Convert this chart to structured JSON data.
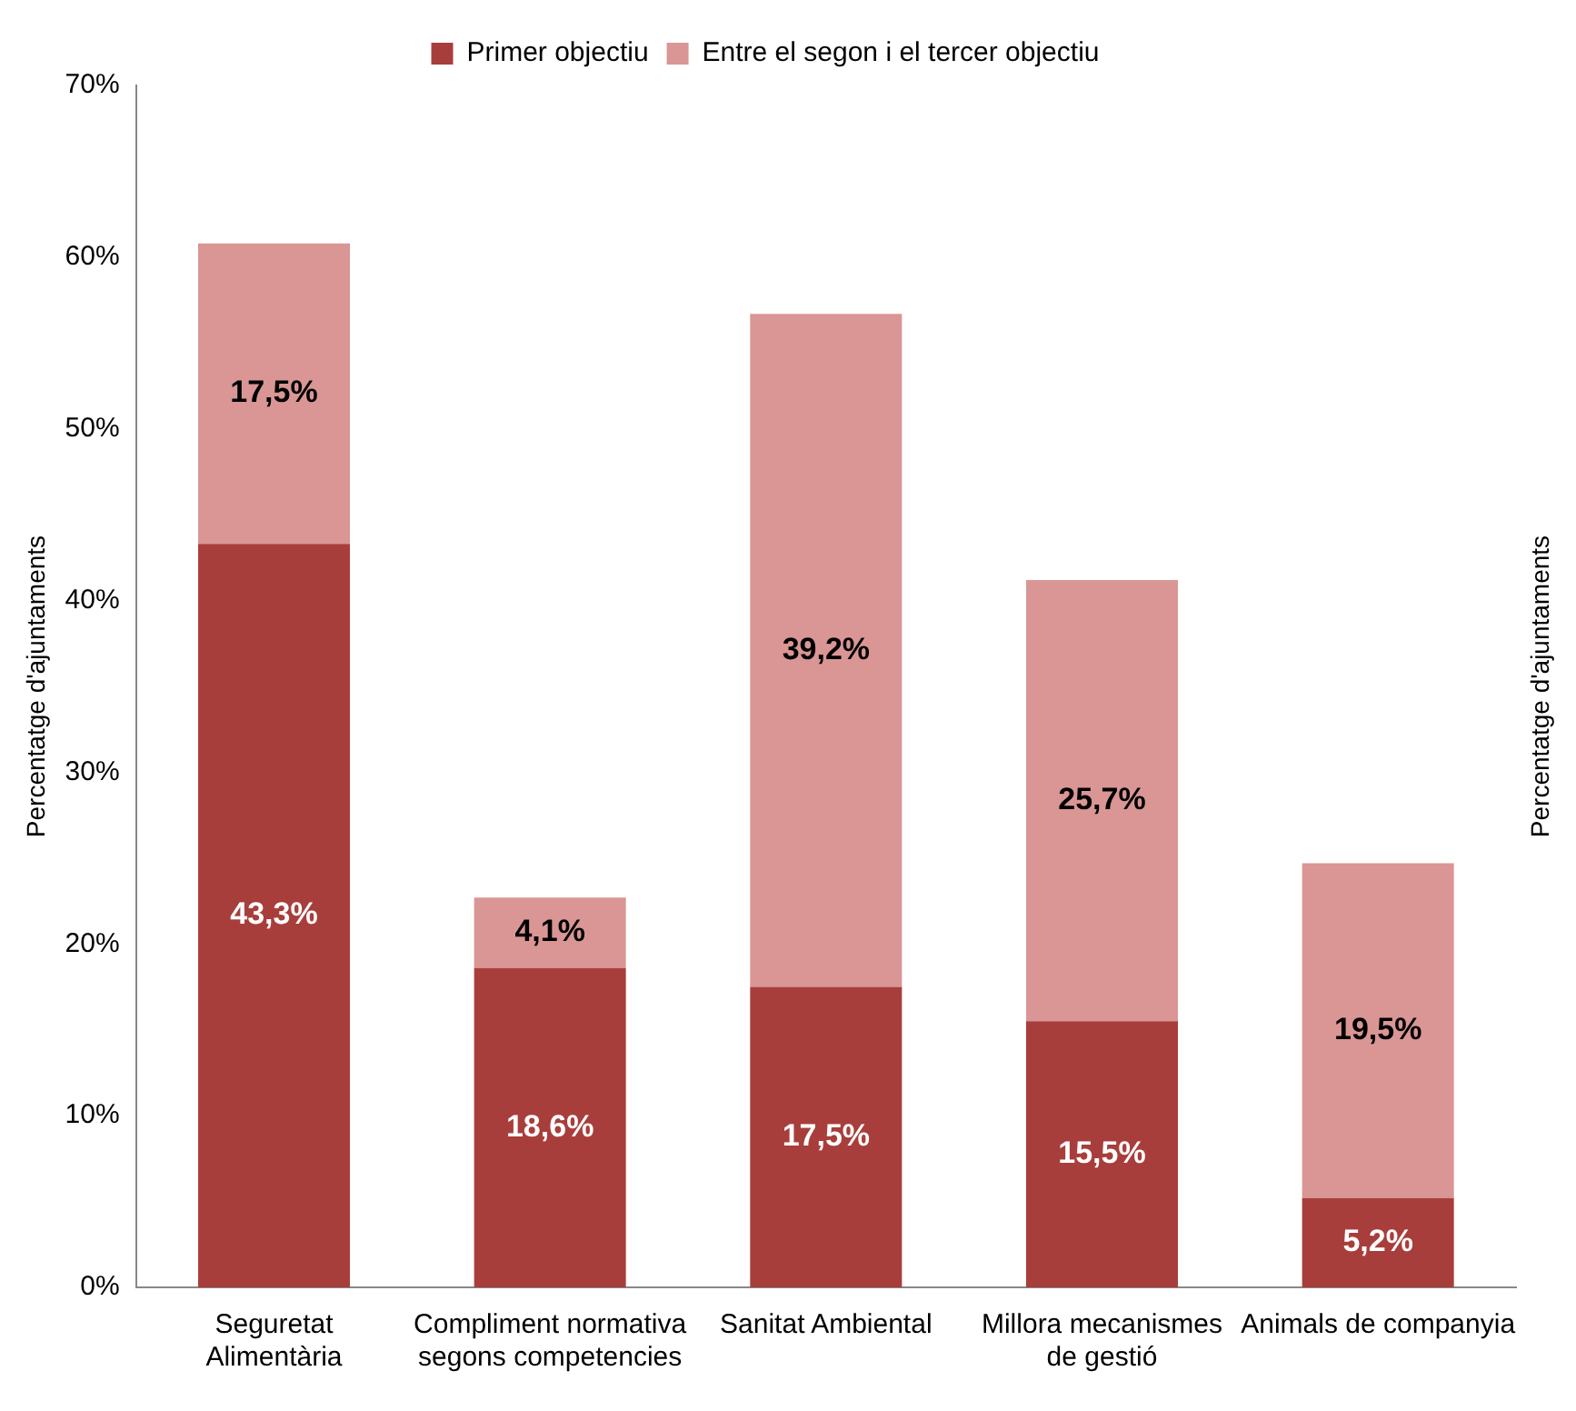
{
  "chart_data": {
    "type": "bar",
    "stacked": true,
    "legend": "top",
    "grid": false,
    "ylabel": "Percentatge d'ajuntaments",
    "y2label": "Percentatge d'ajuntaments",
    "categories": [
      "Seguretat Alimentària",
      "Compliment normativa segons competencies",
      "Sanitat Ambiental",
      "Millora mecanismes de gestió",
      "Animals de companyia"
    ],
    "ylim": [
      0,
      70
    ],
    "yticks": [
      {
        "value": 0,
        "label": "0%"
      },
      {
        "value": 10,
        "label": "10%"
      },
      {
        "value": 20,
        "label": "20%"
      },
      {
        "value": 30,
        "label": "30%"
      },
      {
        "value": 40,
        "label": "40%"
      },
      {
        "value": 50,
        "label": "50%"
      },
      {
        "value": 60,
        "label": "60%"
      },
      {
        "value": 70,
        "label": "70%"
      }
    ],
    "series": [
      {
        "name": "Primer objectiu",
        "color": "#a83e3b",
        "values": [
          43.3,
          18.6,
          17.5,
          15.5,
          5.2
        ],
        "value_labels": [
          "43,3%",
          "18,6%",
          "17,5%",
          "15,5%",
          "5,2%"
        ]
      },
      {
        "name": "Entre el segon i el tercer objectiu",
        "color": "#d99694",
        "values": [
          17.5,
          4.1,
          39.2,
          25.7,
          19.5
        ],
        "value_labels": [
          "17,5%",
          "4,1%",
          "39,2%",
          "25,7%",
          "19,5%"
        ]
      }
    ]
  }
}
